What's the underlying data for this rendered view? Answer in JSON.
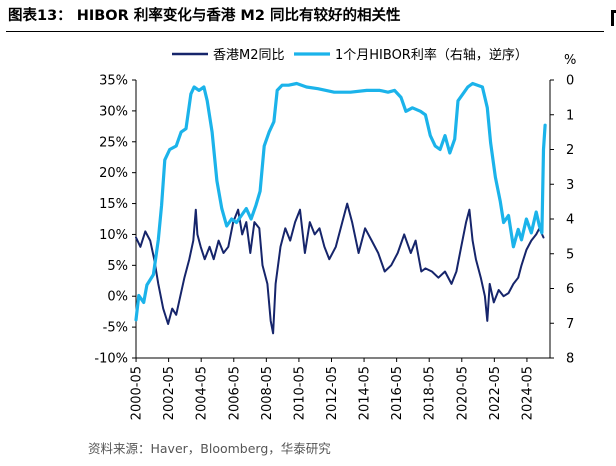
{
  "header": {
    "title": "图表13：  HIBOR 利率变化与香港 M2 同比有较好的相关性"
  },
  "footer": {
    "source": "资料来源：Haver，Bloomberg，华泰研究"
  },
  "chart_data": {
    "type": "line",
    "title": "图表13：  HIBOR 利率变化与香港 M2 同比有较好的相关性",
    "legend_position": "top",
    "grid": false,
    "x_ticks": [
      "2000-05",
      "2002-05",
      "2004-05",
      "2006-05",
      "2008-05",
      "2010-05",
      "2012-05",
      "2014-05",
      "2016-05",
      "2018-05",
      "2020-05",
      "2022-05",
      "2024-05"
    ],
    "x_range": [
      2000.33,
      2025.75
    ],
    "left_axis": {
      "ticks": [
        "35%",
        "30%",
        "25%",
        "20%",
        "15%",
        "10%",
        "5%",
        "0%",
        "-5%",
        "-10%"
      ],
      "ylim": [
        -10,
        35
      ]
    },
    "right_axis": {
      "unit_label": "%",
      "ticks": [
        "0",
        "1",
        "2",
        "3",
        "4",
        "5",
        "6",
        "7",
        "8"
      ],
      "ylim": [
        0,
        8
      ],
      "reversed": true
    },
    "series": [
      {
        "name": "香港M2同比",
        "axis": "left",
        "color": "#16256b",
        "points": [
          [
            2000.33,
            9.5
          ],
          [
            2000.6,
            8
          ],
          [
            2000.9,
            10.5
          ],
          [
            2001.2,
            9
          ],
          [
            2001.45,
            6
          ],
          [
            2001.7,
            2
          ],
          [
            2002.0,
            -2
          ],
          [
            2002.3,
            -4.5
          ],
          [
            2002.55,
            -2
          ],
          [
            2002.8,
            -3
          ],
          [
            2003.05,
            0
          ],
          [
            2003.3,
            3
          ],
          [
            2003.6,
            6
          ],
          [
            2003.85,
            9
          ],
          [
            2004.0,
            14
          ],
          [
            2004.1,
            10
          ],
          [
            2004.3,
            8
          ],
          [
            2004.55,
            6
          ],
          [
            2004.85,
            8
          ],
          [
            2005.1,
            6
          ],
          [
            2005.4,
            9
          ],
          [
            2005.7,
            7
          ],
          [
            2006.0,
            8
          ],
          [
            2006.3,
            12
          ],
          [
            2006.6,
            14
          ],
          [
            2006.85,
            10
          ],
          [
            2007.1,
            12
          ],
          [
            2007.35,
            7
          ],
          [
            2007.6,
            12
          ],
          [
            2007.9,
            11
          ],
          [
            2008.1,
            5
          ],
          [
            2008.4,
            2
          ],
          [
            2008.6,
            -4
          ],
          [
            2008.75,
            -6
          ],
          [
            2008.9,
            2
          ],
          [
            2009.2,
            8
          ],
          [
            2009.5,
            11
          ],
          [
            2009.8,
            9
          ],
          [
            2010.1,
            12
          ],
          [
            2010.4,
            14
          ],
          [
            2010.7,
            7
          ],
          [
            2011.0,
            12
          ],
          [
            2011.3,
            10
          ],
          [
            2011.6,
            11
          ],
          [
            2011.9,
            8
          ],
          [
            2012.2,
            6
          ],
          [
            2012.6,
            8
          ],
          [
            2013.0,
            12
          ],
          [
            2013.3,
            15
          ],
          [
            2013.6,
            12
          ],
          [
            2014.0,
            7
          ],
          [
            2014.4,
            11
          ],
          [
            2014.8,
            9
          ],
          [
            2015.2,
            7
          ],
          [
            2015.6,
            4
          ],
          [
            2016.0,
            5
          ],
          [
            2016.4,
            7
          ],
          [
            2016.8,
            10
          ],
          [
            2017.2,
            7
          ],
          [
            2017.5,
            9
          ],
          [
            2017.85,
            4
          ],
          [
            2018.1,
            4.5
          ],
          [
            2018.5,
            4
          ],
          [
            2018.9,
            3
          ],
          [
            2019.3,
            4
          ],
          [
            2019.7,
            2
          ],
          [
            2020.0,
            4
          ],
          [
            2020.3,
            8
          ],
          [
            2020.6,
            12
          ],
          [
            2020.8,
            14
          ],
          [
            2021.0,
            9
          ],
          [
            2021.2,
            6
          ],
          [
            2021.5,
            3
          ],
          [
            2021.75,
            0
          ],
          [
            2021.9,
            -4
          ],
          [
            2022.05,
            2
          ],
          [
            2022.3,
            -1
          ],
          [
            2022.6,
            1
          ],
          [
            2022.9,
            0
          ],
          [
            2023.2,
            0.5
          ],
          [
            2023.5,
            2
          ],
          [
            2023.8,
            3
          ],
          [
            2024.0,
            5
          ],
          [
            2024.3,
            7.5
          ],
          [
            2024.6,
            9
          ],
          [
            2024.9,
            10
          ],
          [
            2025.1,
            11
          ],
          [
            2025.35,
            9.5
          ]
        ]
      },
      {
        "name": "1个月HIBOR利率（右轴，逆序）",
        "axis": "right",
        "color": "#1bb3ea",
        "points": [
          [
            2000.33,
            6.9
          ],
          [
            2000.5,
            6.2
          ],
          [
            2000.8,
            6.4
          ],
          [
            2001.0,
            5.9
          ],
          [
            2001.4,
            5.6
          ],
          [
            2001.7,
            4.6
          ],
          [
            2001.9,
            3.6
          ],
          [
            2002.1,
            2.3
          ],
          [
            2002.4,
            2.0
          ],
          [
            2002.8,
            1.9
          ],
          [
            2003.1,
            1.5
          ],
          [
            2003.4,
            1.4
          ],
          [
            2003.7,
            0.4
          ],
          [
            2003.9,
            0.2
          ],
          [
            2004.2,
            0.3
          ],
          [
            2004.5,
            0.2
          ],
          [
            2004.7,
            0.6
          ],
          [
            2005.0,
            1.5
          ],
          [
            2005.3,
            2.9
          ],
          [
            2005.6,
            3.7
          ],
          [
            2005.9,
            4.2
          ],
          [
            2006.2,
            4.0
          ],
          [
            2006.5,
            4.1
          ],
          [
            2006.8,
            3.9
          ],
          [
            2007.1,
            3.7
          ],
          [
            2007.4,
            4.0
          ],
          [
            2007.7,
            3.6
          ],
          [
            2007.95,
            3.2
          ],
          [
            2008.2,
            1.9
          ],
          [
            2008.5,
            1.5
          ],
          [
            2008.8,
            1.2
          ],
          [
            2009.0,
            0.3
          ],
          [
            2009.3,
            0.15
          ],
          [
            2009.7,
            0.15
          ],
          [
            2010.2,
            0.1
          ],
          [
            2010.8,
            0.2
          ],
          [
            2011.5,
            0.25
          ],
          [
            2012.5,
            0.35
          ],
          [
            2013.5,
            0.35
          ],
          [
            2014.5,
            0.3
          ],
          [
            2015.3,
            0.3
          ],
          [
            2015.8,
            0.35
          ],
          [
            2016.2,
            0.3
          ],
          [
            2016.6,
            0.5
          ],
          [
            2016.9,
            0.9
          ],
          [
            2017.3,
            0.8
          ],
          [
            2017.8,
            0.9
          ],
          [
            2018.1,
            1.0
          ],
          [
            2018.4,
            1.6
          ],
          [
            2018.7,
            1.9
          ],
          [
            2019.0,
            2.0
          ],
          [
            2019.3,
            1.6
          ],
          [
            2019.6,
            2.1
          ],
          [
            2019.9,
            1.7
          ],
          [
            2020.1,
            0.6
          ],
          [
            2020.4,
            0.4
          ],
          [
            2020.7,
            0.2
          ],
          [
            2021.0,
            0.1
          ],
          [
            2021.3,
            0.15
          ],
          [
            2021.6,
            0.2
          ],
          [
            2021.9,
            0.8
          ],
          [
            2022.1,
            1.8
          ],
          [
            2022.4,
            2.8
          ],
          [
            2022.7,
            3.5
          ],
          [
            2022.9,
            4.1
          ],
          [
            2023.2,
            3.9
          ],
          [
            2023.5,
            4.8
          ],
          [
            2023.8,
            4.3
          ],
          [
            2024.0,
            4.6
          ],
          [
            2024.3,
            4.0
          ],
          [
            2024.6,
            4.4
          ],
          [
            2024.9,
            3.8
          ],
          [
            2025.1,
            4.2
          ],
          [
            2025.25,
            4.4
          ],
          [
            2025.35,
            2.0
          ],
          [
            2025.45,
            1.3
          ]
        ]
      }
    ]
  }
}
